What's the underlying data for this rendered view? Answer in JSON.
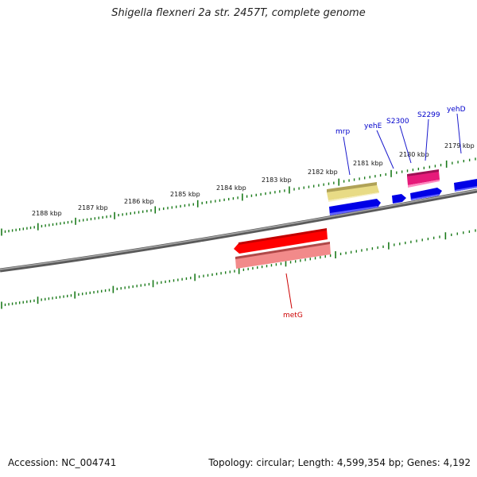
{
  "title": "Shigella flexneri 2a str. 2457T, complete genome",
  "footer": {
    "accession": "Accession: NC_004741",
    "summary": "Topology: circular; Length: 4,599,354 bp; Genes: 4,192"
  },
  "ticks": [
    {
      "label": "2188 kbp"
    },
    {
      "label": "2187 kbp"
    },
    {
      "label": "2186 kbp"
    },
    {
      "label": "2185 kbp"
    },
    {
      "label": "2184 kbp"
    },
    {
      "label": "2183 kbp"
    },
    {
      "label": "2182 kbp"
    },
    {
      "label": "2181 kbp"
    },
    {
      "label": "2180 kbp"
    },
    {
      "label": "2179 kbp"
    }
  ],
  "genes": [
    {
      "name": "mrp",
      "color": "#0000cc"
    },
    {
      "name": "yehE",
      "color": "#0000cc"
    },
    {
      "name": "S2300",
      "color": "#0000cc"
    },
    {
      "name": "S2299",
      "color": "#0000cc"
    },
    {
      "name": "yehD",
      "color": "#0000cc"
    },
    {
      "name": "metG",
      "color": "#cc0000"
    }
  ],
  "colors": {
    "backbone": "#808080",
    "tick": "#1a7a1a",
    "forward_cds": "#0000ee",
    "reverse_cds": "#ff0000",
    "forward_gene": "#efe49a",
    "reverse_gene": "#f08a8a",
    "misc_feature": "#ee2288"
  }
}
